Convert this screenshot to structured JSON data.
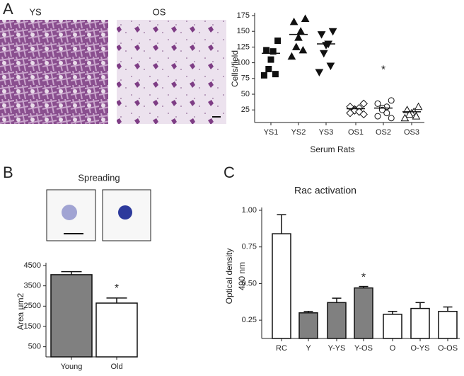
{
  "panel_labels": [
    "A",
    "B",
    "C"
  ],
  "images": {
    "left": "YS",
    "right": "OS",
    "spreading": "Spreading"
  },
  "chart_data": [
    {
      "type": "dotplot",
      "ylabel": "Cells/field",
      "xlabel": "Serum Rats",
      "categories": [
        "YS1",
        "YS2",
        "YS3",
        "OS1",
        "OS2",
        "OS3"
      ],
      "markers": [
        "square",
        "triangle",
        "triangle-down",
        "diamond-open",
        "circle-open",
        "triangle-open"
      ],
      "points": [
        [
          135,
          120,
          118,
          105,
          90,
          82,
          80
        ],
        [
          170,
          165,
          150,
          140,
          125,
          120,
          110
        ],
        [
          150,
          145,
          130,
          128,
          115,
          95,
          85
        ],
        [
          35,
          30,
          28,
          26,
          24,
          22,
          20,
          18
        ],
        [
          40,
          35,
          30,
          28,
          25,
          20,
          15,
          12
        ],
        [
          30,
          25,
          22,
          20,
          18,
          15,
          12
        ]
      ],
      "means": [
        115,
        145,
        130,
        27,
        28,
        22
      ],
      "ylim": [
        5,
        175
      ],
      "yticks": [
        25,
        50,
        75,
        100,
        125,
        150,
        175
      ],
      "annotations": [
        {
          "text": "*",
          "category": "OS2",
          "y": 88
        }
      ]
    },
    {
      "type": "bar",
      "ylabel": "Area μm2",
      "categories": [
        "Young",
        "Old"
      ],
      "values": [
        4050,
        2650
      ],
      "errors": [
        150,
        250
      ],
      "colors": [
        "#808080",
        "#ffffff"
      ],
      "ylim": [
        0,
        4500
      ],
      "yticks": [
        500,
        1500,
        2500,
        3500,
        4500
      ],
      "annotations": [
        {
          "text": "*",
          "category": "Old",
          "y": 3350
        }
      ]
    },
    {
      "type": "bar",
      "title": "Rac activation",
      "ylabel": [
        "Optical density",
        "490 nm"
      ],
      "categories": [
        "RC",
        "Y",
        "Y-YS",
        "Y-OS",
        "O",
        "O-YS",
        "O-OS"
      ],
      "values": [
        0.84,
        0.3,
        0.37,
        0.47,
        0.29,
        0.33,
        0.31
      ],
      "errors": [
        0.13,
        0.01,
        0.03,
        0.01,
        0.02,
        0.04,
        0.03
      ],
      "colors": [
        "#ffffff",
        "#808080",
        "#808080",
        "#808080",
        "#ffffff",
        "#ffffff",
        "#ffffff"
      ],
      "ylim": [
        0.125,
        1.0
      ],
      "yticks": [
        0.25,
        {
          "value": 0.5,
          "label": "0.50"
        },
        0.75,
        {
          "value": 1.0,
          "label": "1.00"
        }
      ],
      "annotations": [
        {
          "text": "*",
          "category": "Y-OS",
          "y": 0.54
        }
      ]
    }
  ]
}
